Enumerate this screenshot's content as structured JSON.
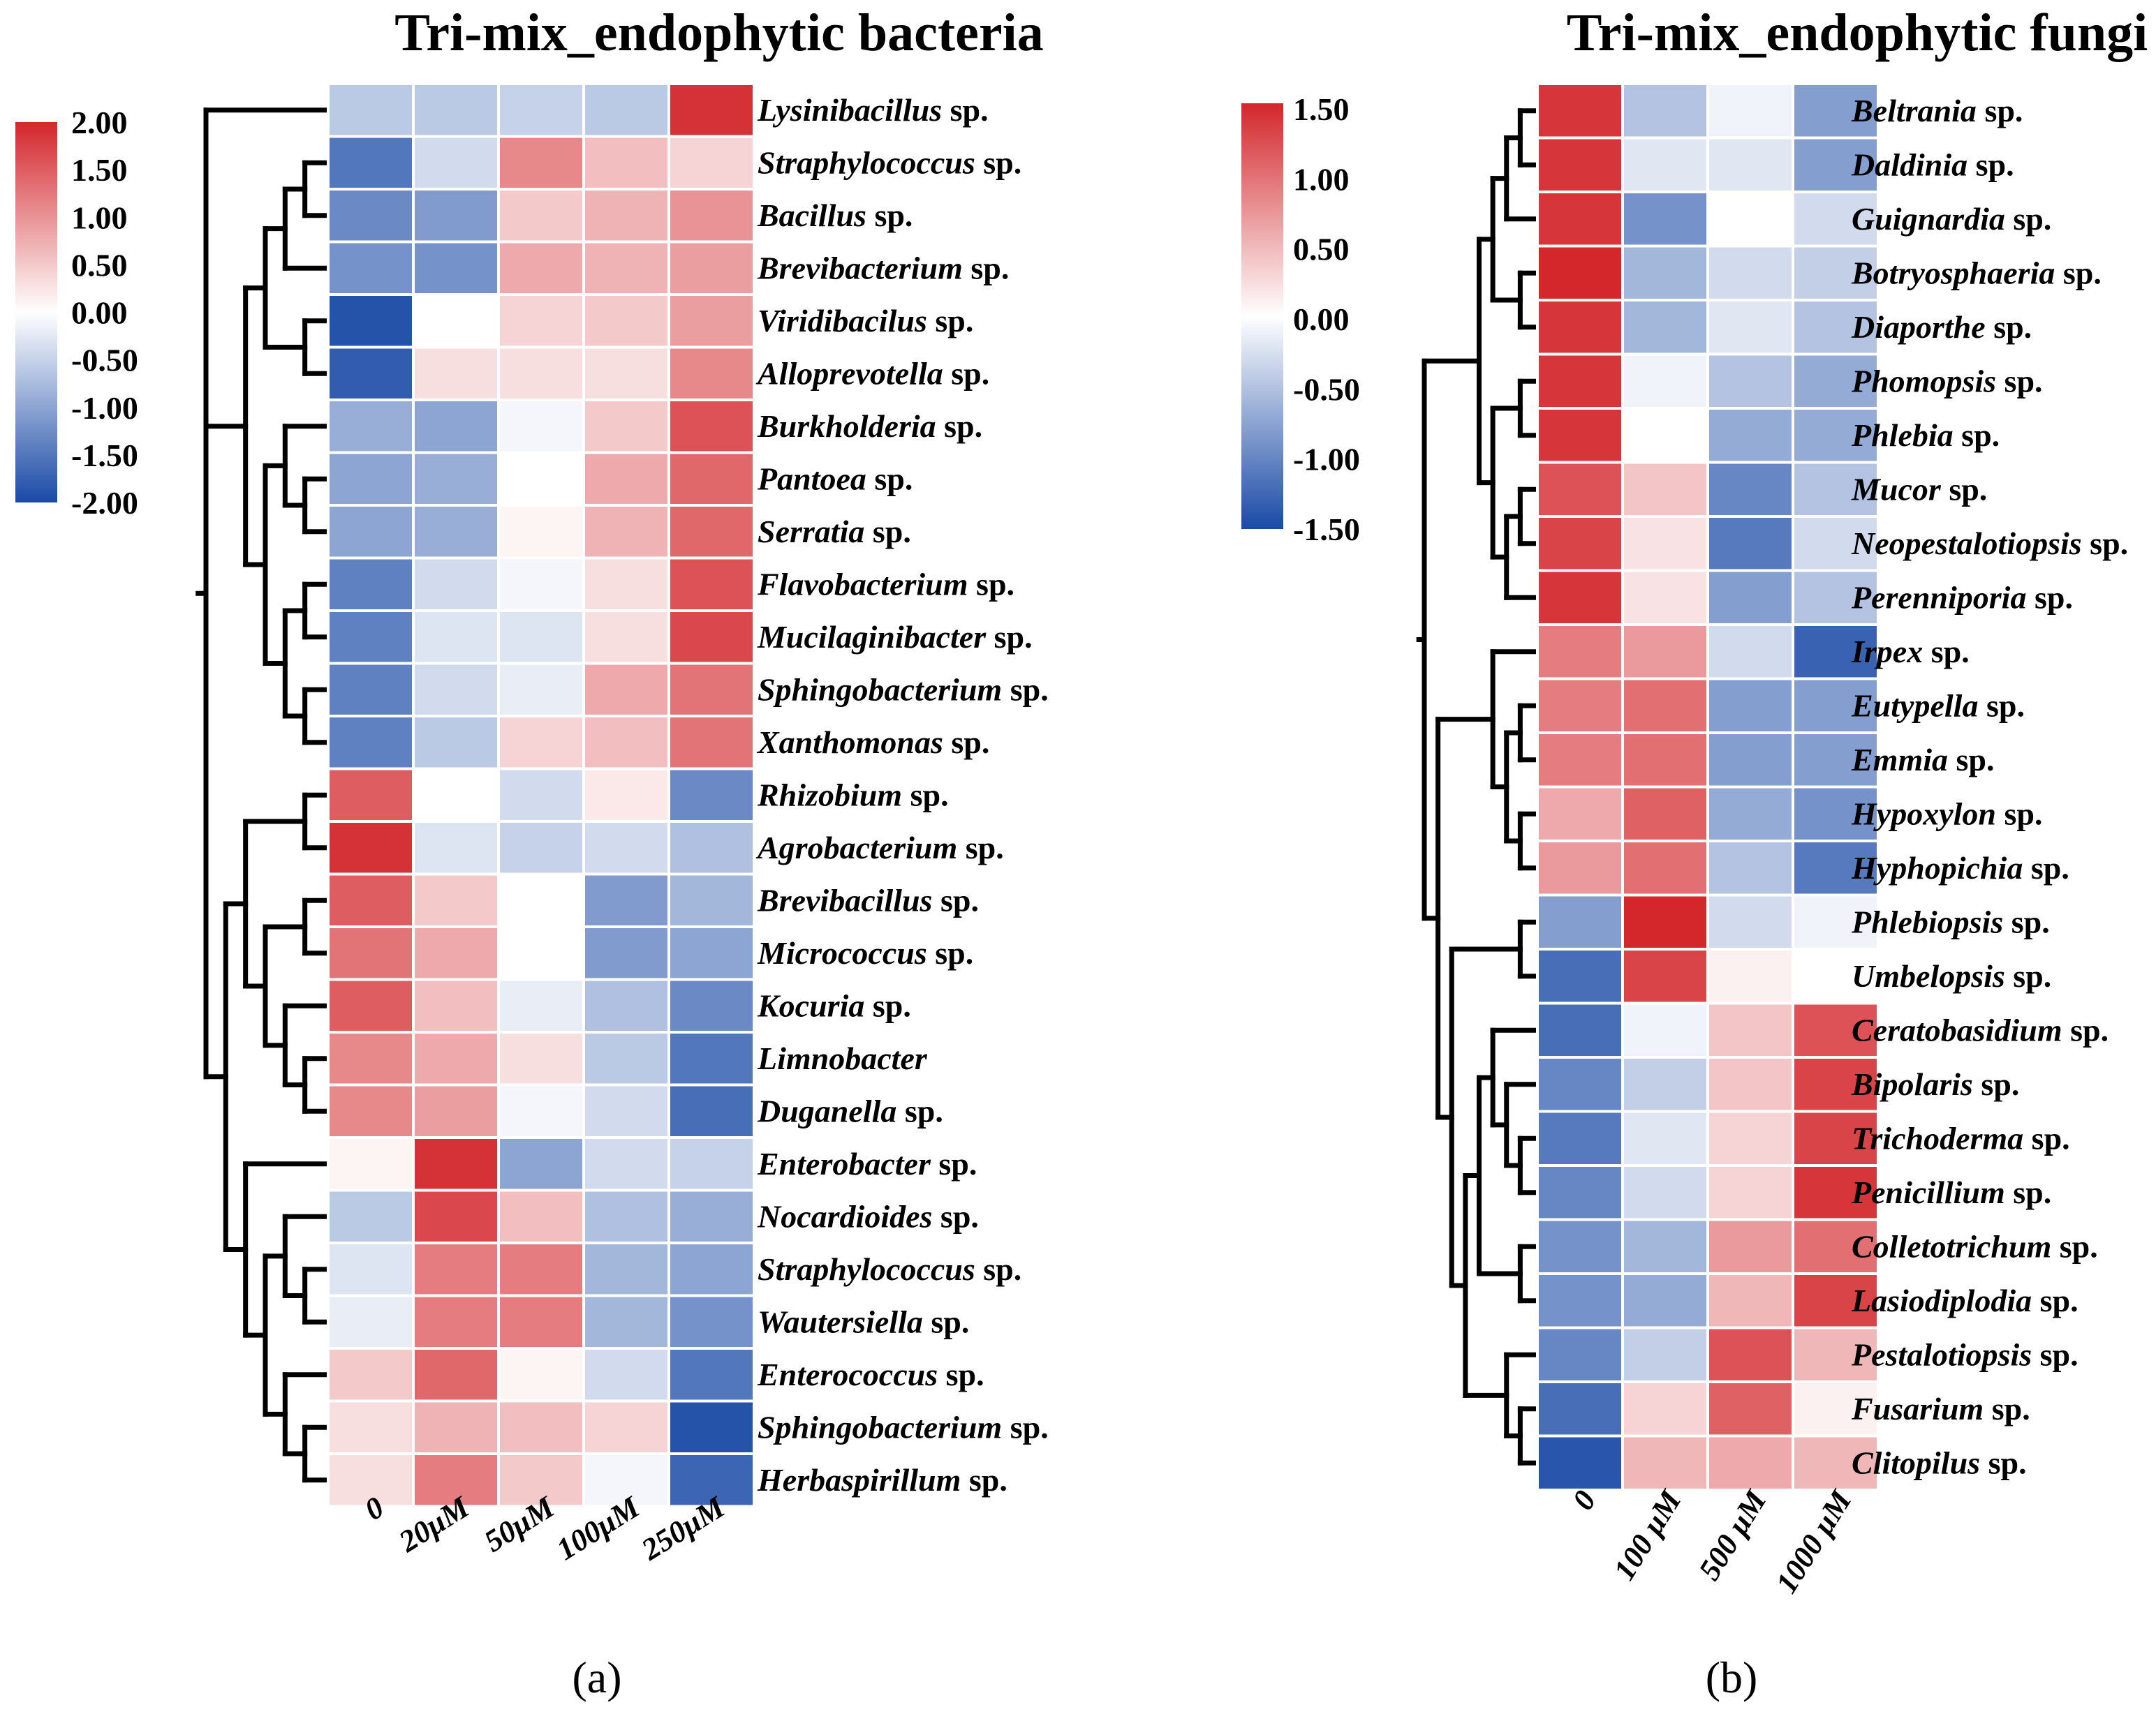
{
  "chart_data": [
    {
      "type": "heatmap",
      "title": "Tri-mix_endophytic bacteria",
      "panel_label": "(a)",
      "columns": [
        "0",
        "20μM",
        "50μM",
        "100μM",
        "250μM"
      ],
      "legend": {
        "max": 2.0,
        "min": -2.0,
        "ticks": [
          "2.00",
          "1.50",
          "1.00",
          "0.50",
          "0.00",
          "-0.50",
          "-1.00",
          "-1.50",
          "-2.00"
        ]
      },
      "rows": [
        {
          "genus": "Lysinibacillus",
          "suffix": "sp.",
          "values": [
            -0.6,
            -0.6,
            -0.5,
            -0.6,
            1.9
          ]
        },
        {
          "genus": "Straphylococcus",
          "suffix": "sp.",
          "values": [
            -1.5,
            -0.4,
            1.1,
            0.6,
            0.4
          ]
        },
        {
          "genus": "Bacillus",
          "suffix": "sp.",
          "values": [
            -1.3,
            -1.1,
            0.5,
            0.7,
            1.0
          ]
        },
        {
          "genus": "Brevibacterium",
          "suffix": "sp.",
          "values": [
            -1.2,
            -1.2,
            0.8,
            0.7,
            0.9
          ]
        },
        {
          "genus": "Viridibacilus",
          "suffix": "sp.",
          "values": [
            -1.9,
            0.0,
            0.4,
            0.5,
            0.9
          ]
        },
        {
          "genus": "Alloprevotella",
          "suffix": "sp.",
          "values": [
            -1.8,
            0.3,
            0.3,
            0.3,
            1.1
          ]
        },
        {
          "genus": "Burkholderia",
          "suffix": "sp.",
          "values": [
            -0.9,
            -1.0,
            -0.1,
            0.5,
            1.6
          ]
        },
        {
          "genus": "Pantoea",
          "suffix": "sp.",
          "values": [
            -1.0,
            -0.9,
            0.0,
            0.8,
            1.4
          ]
        },
        {
          "genus": "Serratia",
          "suffix": "sp.",
          "values": [
            -1.0,
            -0.9,
            0.1,
            0.7,
            1.4
          ]
        },
        {
          "genus": "Flavobacterium",
          "suffix": "sp.",
          "values": [
            -1.4,
            -0.4,
            -0.1,
            0.3,
            1.6
          ]
        },
        {
          "genus": "Mucilaginibacter",
          "suffix": "sp.",
          "values": [
            -1.4,
            -0.3,
            -0.3,
            0.3,
            1.7
          ]
        },
        {
          "genus": "Sphingobacterium",
          "suffix": "sp.",
          "values": [
            -1.4,
            -0.4,
            -0.2,
            0.8,
            1.3
          ]
        },
        {
          "genus": "Xanthomonas",
          "suffix": "sp.",
          "values": [
            -1.4,
            -0.6,
            0.4,
            0.6,
            1.3
          ]
        },
        {
          "genus": "Rhizobium",
          "suffix": "sp.",
          "values": [
            1.5,
            0.0,
            -0.4,
            0.2,
            -1.3
          ]
        },
        {
          "genus": "Agrobacterium",
          "suffix": "sp.",
          "values": [
            1.9,
            -0.3,
            -0.5,
            -0.4,
            -0.7
          ]
        },
        {
          "genus": "Brevibacillus",
          "suffix": "sp.",
          "values": [
            1.5,
            0.5,
            0.0,
            -1.1,
            -0.8
          ]
        },
        {
          "genus": "Micrococcus",
          "suffix": "sp.",
          "values": [
            1.3,
            0.8,
            0.0,
            -1.1,
            -1.0
          ]
        },
        {
          "genus": "Kocuria",
          "suffix": "sp.",
          "values": [
            1.5,
            0.6,
            -0.2,
            -0.7,
            -1.3
          ]
        },
        {
          "genus": "Limnobacter",
          "suffix": "",
          "values": [
            1.1,
            0.8,
            0.3,
            -0.6,
            -1.5
          ]
        },
        {
          "genus": "Duganella",
          "suffix": "sp.",
          "values": [
            1.1,
            0.9,
            -0.1,
            -0.4,
            -1.6
          ]
        },
        {
          "genus": "Enterobacter",
          "suffix": "sp.",
          "values": [
            0.1,
            1.9,
            -1.0,
            -0.4,
            -0.5
          ]
        },
        {
          "genus": "Nocardioides",
          "suffix": "sp.",
          "values": [
            -0.6,
            1.7,
            0.6,
            -0.7,
            -0.9
          ]
        },
        {
          "genus": "Straphylococcus",
          "suffix": "sp.",
          "values": [
            -0.3,
            1.2,
            1.2,
            -0.8,
            -1.0
          ]
        },
        {
          "genus": "Wautersiella",
          "suffix": "sp.",
          "values": [
            -0.2,
            1.2,
            1.2,
            -0.8,
            -1.2
          ]
        },
        {
          "genus": "Enterococcus",
          "suffix": "sp.",
          "values": [
            0.5,
            1.4,
            0.1,
            -0.4,
            -1.5
          ]
        },
        {
          "genus": "Sphingobacterium",
          "suffix": "sp.",
          "values": [
            0.3,
            0.7,
            0.6,
            0.4,
            -1.9
          ]
        },
        {
          "genus": "Herbaspirillum",
          "suffix": "sp.",
          "values": [
            0.3,
            1.2,
            0.5,
            -0.1,
            -1.7
          ]
        }
      ]
    },
    {
      "type": "heatmap",
      "title": "Tri-mix_endophytic fungi",
      "panel_label": "(b)",
      "columns": [
        "0",
        "100 μM",
        "500 μM",
        "1000 μM"
      ],
      "legend": {
        "max": 1.5,
        "min": -1.5,
        "ticks": [
          "1.50",
          "1.00",
          "0.50",
          "0.00",
          "-0.50",
          "-1.00",
          "-1.50"
        ]
      },
      "rows": [
        {
          "genus": "Beltrania",
          "suffix": "sp.",
          "values": [
            1.4,
            -0.5,
            -0.1,
            -0.8
          ]
        },
        {
          "genus": "Daldinia",
          "suffix": "sp.",
          "values": [
            1.4,
            -0.2,
            -0.2,
            -0.8
          ]
        },
        {
          "genus": "Guignardia",
          "suffix": "sp.",
          "values": [
            1.4,
            -0.9,
            0.0,
            -0.3
          ]
        },
        {
          "genus": "Botryosphaeria",
          "suffix": "sp.",
          "values": [
            1.5,
            -0.6,
            -0.3,
            -0.4
          ]
        },
        {
          "genus": "Diaporthe",
          "suffix": "sp.",
          "values": [
            1.4,
            -0.6,
            -0.2,
            -0.5
          ]
        },
        {
          "genus": "Phomopsis",
          "suffix": "sp.",
          "values": [
            1.4,
            -0.1,
            -0.5,
            -0.7
          ]
        },
        {
          "genus": "Phlebia",
          "suffix": "sp.",
          "values": [
            1.4,
            0.0,
            -0.7,
            -0.7
          ]
        },
        {
          "genus": "Mucor",
          "suffix": "sp.",
          "values": [
            1.2,
            0.4,
            -1.0,
            -0.5
          ]
        },
        {
          "genus": "Neopestalotiopsis",
          "suffix": "sp.",
          "values": [
            1.3,
            0.2,
            -1.1,
            -0.3
          ]
        },
        {
          "genus": "Perenniporia",
          "suffix": "sp.",
          "values": [
            1.4,
            0.2,
            -0.8,
            -0.5
          ]
        },
        {
          "genus": "Irpex",
          "suffix": "sp.",
          "values": [
            0.9,
            0.7,
            -0.3,
            -1.3
          ]
        },
        {
          "genus": "Eutypella",
          "suffix": "sp.",
          "values": [
            0.9,
            1.0,
            -0.8,
            -0.8
          ]
        },
        {
          "genus": "Emmia",
          "suffix": "sp.",
          "values": [
            0.9,
            1.0,
            -0.8,
            -0.8
          ]
        },
        {
          "genus": "Hypoxylon",
          "suffix": "sp.",
          "values": [
            0.6,
            1.1,
            -0.7,
            -0.9
          ]
        },
        {
          "genus": "Hyphopichia",
          "suffix": "sp.",
          "values": [
            0.7,
            1.0,
            -0.5,
            -1.1
          ]
        },
        {
          "genus": "Phlebiopsis",
          "suffix": "sp.",
          "values": [
            -0.8,
            1.5,
            -0.3,
            -0.1
          ]
        },
        {
          "genus": "Umbelopsis",
          "suffix": "sp.",
          "values": [
            -1.2,
            1.3,
            0.1,
            0.0
          ]
        },
        {
          "genus": "Ceratobasidium",
          "suffix": "sp.",
          "values": [
            -1.2,
            -0.1,
            0.4,
            1.2
          ]
        },
        {
          "genus": "Bipolaris",
          "suffix": "sp.",
          "values": [
            -1.0,
            -0.4,
            0.4,
            1.3
          ]
        },
        {
          "genus": "Trichoderma",
          "suffix": "sp.",
          "values": [
            -1.1,
            -0.2,
            0.3,
            1.3
          ]
        },
        {
          "genus": "Penicillium",
          "suffix": "sp.",
          "values": [
            -1.0,
            -0.3,
            0.3,
            1.4
          ]
        },
        {
          "genus": "Colletotrichum",
          "suffix": "sp.",
          "values": [
            -0.9,
            -0.6,
            0.7,
            1.0
          ]
        },
        {
          "genus": "Lasiodiplodia",
          "suffix": "sp.",
          "values": [
            -0.9,
            -0.7,
            0.5,
            1.3
          ]
        },
        {
          "genus": "Pestalotiopsis",
          "suffix": "sp.",
          "values": [
            -1.0,
            -0.4,
            1.2,
            0.5
          ]
        },
        {
          "genus": "Fusarium",
          "suffix": "sp.",
          "values": [
            -1.2,
            0.3,
            1.1,
            0.1
          ]
        },
        {
          "genus": "Clitopilus",
          "suffix": "sp.",
          "values": [
            -1.4,
            0.5,
            0.6,
            0.5
          ]
        }
      ]
    }
  ]
}
